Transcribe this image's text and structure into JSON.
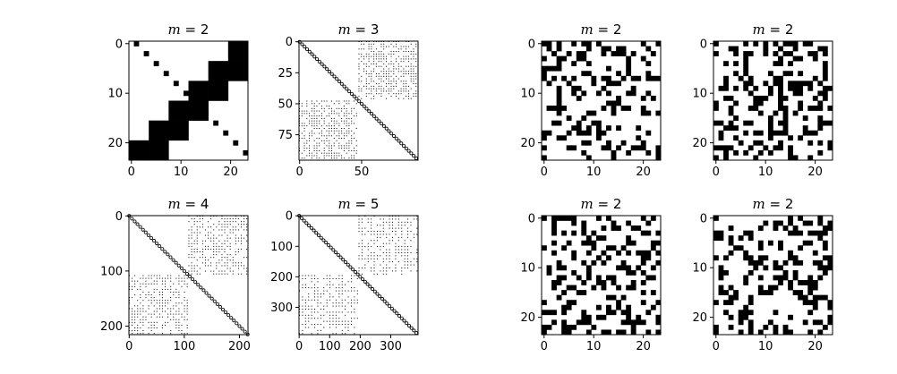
{
  "figure": {
    "background": "#ffffff",
    "cell_color": "#000000"
  },
  "chart_data": [
    {
      "type": "heatmap",
      "title_var": "m",
      "title_value": "2",
      "n": 24,
      "pattern": "block",
      "m": 2,
      "xticks": [
        0,
        10,
        20
      ],
      "yticks": [
        0,
        10,
        20
      ]
    },
    {
      "type": "heatmap",
      "title_var": "m",
      "title_value": "3",
      "n": 96,
      "pattern": "spy",
      "m": 3,
      "xticks": [
        0,
        50
      ],
      "yticks": [
        0,
        25,
        50,
        75
      ]
    },
    {
      "type": "heatmap",
      "title_var": "m",
      "title_value": "2",
      "n": 24,
      "pattern": "random",
      "seed": 11,
      "xticks": [
        0,
        10,
        20
      ],
      "yticks": [
        0,
        10,
        20
      ]
    },
    {
      "type": "heatmap",
      "title_var": "m",
      "title_value": "2",
      "n": 24,
      "pattern": "random",
      "seed": 23,
      "xticks": [
        0,
        10,
        20
      ],
      "yticks": [
        0,
        10,
        20
      ]
    },
    {
      "type": "heatmap",
      "title_var": "m",
      "title_value": "4",
      "n": 216,
      "pattern": "spy",
      "m": 4,
      "xticks": [
        0,
        100,
        200
      ],
      "yticks": [
        0,
        100,
        200
      ]
    },
    {
      "type": "heatmap",
      "title_var": "m",
      "title_value": "5",
      "n": 390,
      "pattern": "spy",
      "m": 5,
      "xticks": [
        0,
        100,
        200,
        300
      ],
      "yticks": [
        0,
        100,
        200,
        300
      ]
    },
    {
      "type": "heatmap",
      "title_var": "m",
      "title_value": "2",
      "n": 24,
      "pattern": "random",
      "seed": 37,
      "xticks": [
        0,
        10,
        20
      ],
      "yticks": [
        0,
        10,
        20
      ]
    },
    {
      "type": "heatmap",
      "title_var": "m",
      "title_value": "2",
      "n": 24,
      "pattern": "random",
      "seed": 51,
      "xticks": [
        0,
        10,
        20
      ],
      "yticks": [
        0,
        10,
        20
      ]
    }
  ]
}
